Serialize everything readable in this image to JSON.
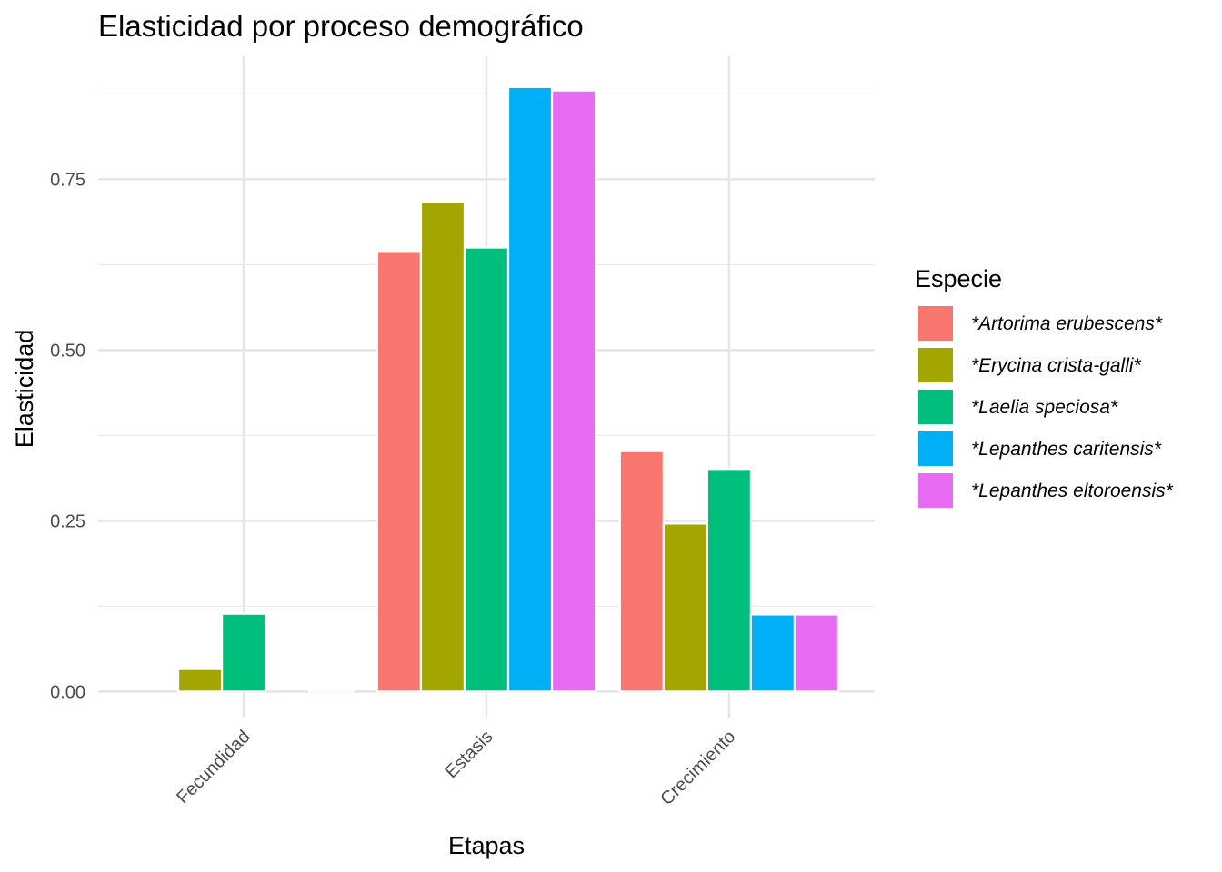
{
  "chart_data": {
    "type": "bar",
    "title": "Elasticidad por proceso demográfico",
    "xlabel": "Etapas",
    "ylabel": "Elasticidad",
    "categories": [
      "Fecundidad",
      "Estasis",
      "Crecimiento"
    ],
    "y_ticks": [
      "0.00",
      "0.25",
      "0.50",
      "0.75"
    ],
    "y_tick_values": [
      0,
      0.25,
      0.5,
      0.75
    ],
    "ylim": [
      -0.038,
      0.93
    ],
    "grid": true,
    "legend_position": "right",
    "legend_title": "Especie",
    "series": [
      {
        "name": "*Artorima erubescens*",
        "color": "#F8766D",
        "values": [
          0.0,
          0.645,
          0.352
        ]
      },
      {
        "name": "*Erycina crista-galli*",
        "color": "#A3A500",
        "values": [
          0.033,
          0.717,
          0.246
        ]
      },
      {
        "name": "*Laelia speciosa*",
        "color": "#00BF7D",
        "values": [
          0.114,
          0.65,
          0.326
        ]
      },
      {
        "name": "*Lepanthes caritensis*",
        "color": "#00B0F6",
        "values": [
          0.0,
          0.885,
          0.113
        ]
      },
      {
        "name": "*Lepanthes eltoroensis*",
        "color": "#E76BF3",
        "values": [
          0.003,
          0.88,
          0.113
        ]
      }
    ]
  }
}
